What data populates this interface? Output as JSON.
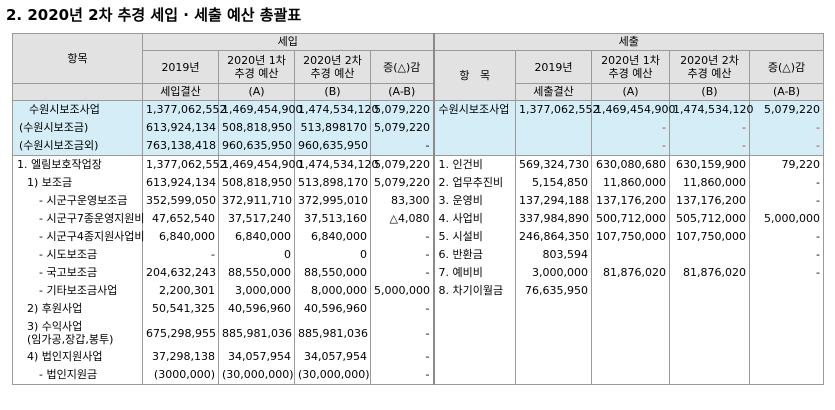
{
  "title": "2. 2020년 2차 추경 세입 · 세출 예산 총괄표",
  "header": {
    "income": "세입",
    "expense": "세출",
    "item": "항목",
    "item_spaced": "항   목",
    "y2019": "2019년",
    "first": "2020년 1차\n추경 예산",
    "second": "2020년 2차\n추경 예산",
    "diff": "증(△)감",
    "settle": "세입결산",
    "exp_settle": "세출결산",
    "a": "(A)",
    "b": "(B)",
    "ab": "(A-B)"
  },
  "income_rows": [
    {
      "label": "수원시보조사업",
      "y2019": "1,377,062,552",
      "first": "1,469,454,900",
      "second": "1,474,534,120",
      "diff": "5,079,220"
    },
    {
      "label": "(수원시보조금)",
      "y2019": "613,924,134",
      "first": "508,818,950",
      "second": "513,898170",
      "diff": "5,079,220"
    },
    {
      "label": "(수원시보조금외)",
      "y2019": "763,138,418",
      "first": "960,635,950",
      "second": "960,635,950",
      "diff": "-"
    },
    {
      "label": "1. 엘림보호작업장",
      "y2019": "1,377,062,552",
      "first": "1,469,454,900",
      "second": "1,474,534,120",
      "diff": "5,079,220"
    },
    {
      "label": "1) 보조금",
      "y2019": "613,924,134",
      "first": "508,818,950",
      "second": "513,898,170",
      "diff": "5,079,220"
    },
    {
      "label": "- 시군구운영보조금",
      "y2019": "352,599,050",
      "first": "372,911,710",
      "second": "372,995,010",
      "diff": "83,300"
    },
    {
      "label": "- 시군구7종운영지원비",
      "y2019": "47,652,540",
      "first": "37,517,240",
      "second": "37,513,160",
      "diff": "△4,080"
    },
    {
      "label": "- 시군구4종지원사업비",
      "y2019": "6,840,000",
      "first": "6,840,000",
      "second": "6,840,000",
      "diff": "-"
    },
    {
      "label": "- 시도보조금",
      "y2019": "-",
      "first": "0",
      "second": "0",
      "diff": "-"
    },
    {
      "label": "- 국고보조금",
      "y2019": "204,632,243",
      "first": "88,550,000",
      "second": "88,550,000",
      "diff": "-"
    },
    {
      "label": "- 기타보조금사업",
      "y2019": "2,200,301",
      "first": "3,000,000",
      "second": "8,000,000",
      "diff": "5,000,000"
    },
    {
      "label": "2) 후원사업",
      "y2019": "50,541,325",
      "first": "40,596,960",
      "second": "40,596,960",
      "diff": "-"
    },
    {
      "label": "3) 수익사업\n(임가공,장갑,봉투)",
      "y2019": "675,298,955",
      "first": "885,981,036",
      "second": "885,981,036",
      "diff": "-"
    },
    {
      "label": "4) 법인지원사업",
      "y2019": "37,298,138",
      "first": "34,057,954",
      "second": "34,057,954",
      "diff": "-"
    },
    {
      "label": "- 법인지원금",
      "y2019": "(3000,000)",
      "first": "(30,000,000)",
      "second": "(30,000,000)",
      "diff": "-"
    }
  ],
  "expense_rows": [
    {
      "label": "수원시보조사업",
      "y2019": "1,377,062,552",
      "first": "1,469,454,900",
      "second": "1,474,534,120",
      "diff": "5,079,220"
    },
    {
      "label": "",
      "y2019": "",
      "first": "-",
      "second": "-",
      "diff": "-"
    },
    {
      "label": "",
      "y2019": "",
      "first": "-",
      "second": "-",
      "diff": "-"
    },
    {
      "label": "1. 인건비",
      "y2019": "569,324,730",
      "first": "630,080,680",
      "second": "630,159,900",
      "diff": "79,220"
    },
    {
      "label": "2. 업무추진비",
      "y2019": "5,154,850",
      "first": "11,860,000",
      "second": "11,860,000",
      "diff": "-"
    },
    {
      "label": "3. 운영비",
      "y2019": "137,294,188",
      "first": "137,176,200",
      "second": "137,176,200",
      "diff": "-"
    },
    {
      "label": "4. 사업비",
      "y2019": "337,984,890",
      "first": "500,712,000",
      "second": "505,712,000",
      "diff": "5,000,000"
    },
    {
      "label": "5. 시설비",
      "y2019": "246,864,350",
      "first": "107,750,000",
      "second": "107,750,000",
      "diff": "-"
    },
    {
      "label": "6. 반환금",
      "y2019": "803,594",
      "first": "",
      "second": "",
      "diff": "-"
    },
    {
      "label": "7. 예비비",
      "y2019": "3,000,000",
      "first": "81,876,020",
      "second": "81,876,020",
      "diff": "-"
    },
    {
      "label": "8. 차기이월금",
      "y2019": "76,635,950",
      "first": "",
      "second": "",
      "diff": ""
    }
  ],
  "colors": {
    "header_bg": "#e2e2e2",
    "highlight_bg": "#d4edf6",
    "negative_dash": "#c0392b"
  }
}
